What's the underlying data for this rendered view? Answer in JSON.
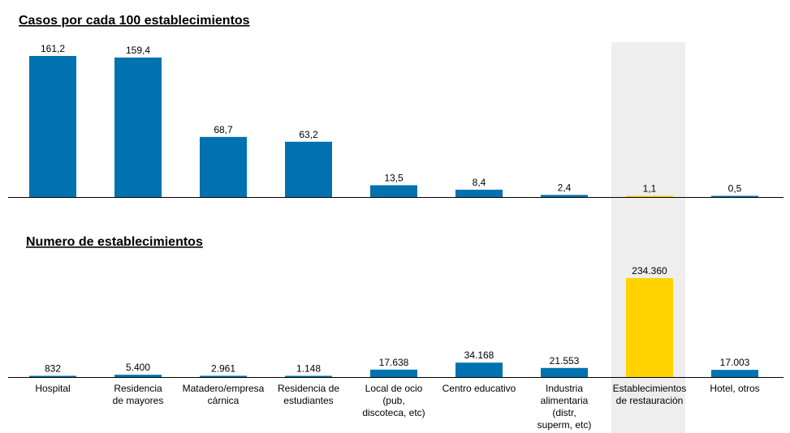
{
  "chart_data": [
    {
      "type": "bar",
      "title": "Casos por cada 100 establecimientos",
      "categories": [
        "Hospital",
        "Residencia de mayores",
        "Matadero/empresa cárnica",
        "Residencia de estudiantes",
        "Local de ocio (pub, discoteca, etc)",
        "Centro educativo",
        "Industria alimentaria (distr, superm, etc)",
        "Establecimientos de restauración",
        "Hotel, otros"
      ],
      "values": [
        161.2,
        159.4,
        68.7,
        63.2,
        13.5,
        8.4,
        2.4,
        1.1,
        0.5
      ],
      "value_labels": [
        "161,2",
        "159,4",
        "68,7",
        "63,2",
        "13,5",
        "8,4",
        "2,4",
        "1,1",
        "0,5"
      ],
      "ylim": [
        0,
        161.2
      ],
      "highlight_index": 7
    },
    {
      "type": "bar",
      "title": "Numero de establecimientos",
      "categories": [
        "Hospital",
        "Residencia de mayores",
        "Matadero/empresa cárnica",
        "Residencia de estudiantes",
        "Local de ocio (pub, discoteca, etc)",
        "Centro educativo",
        "Industria alimentaria (distr, superm, etc)",
        "Establecimientos de restauración",
        "Hotel, otros"
      ],
      "values": [
        832,
        5400,
        2961,
        1148,
        17638,
        34168,
        21553,
        234360,
        17003
      ],
      "value_labels": [
        "832",
        "5.400",
        "2.961",
        "1.148",
        "17.638",
        "34.168",
        "21.553",
        "234.360",
        "17.003"
      ],
      "ylim": [
        0,
        234360
      ],
      "highlight_index": 7
    }
  ],
  "category_lines": [
    [
      "Hospital"
    ],
    [
      "Residencia",
      "de mayores"
    ],
    [
      "Matadero/empresa",
      "cárnica"
    ],
    [
      "Residencia de",
      "estudiantes"
    ],
    [
      "Local de ocio",
      "(pub,",
      "discoteca, etc)"
    ],
    [
      "Centro educativo"
    ],
    [
      "Industria",
      "alimentaria",
      "(distr,",
      "superm, etc)"
    ],
    [
      "Establecimientos",
      "de restauración"
    ],
    [
      "Hotel, otros"
    ]
  ],
  "colors": {
    "bar": "#0072B0",
    "highlight_bar": "#FFD200",
    "highlight_band": "#EEEEEE",
    "axis": "#000000"
  }
}
